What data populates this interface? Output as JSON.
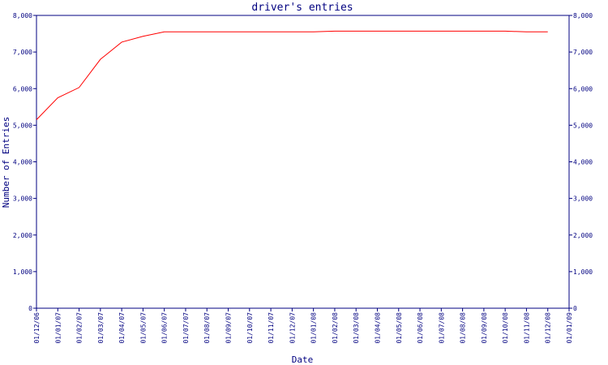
{
  "chart_data": {
    "type": "line",
    "title": "driver's entries",
    "x_label": "Date",
    "y_label": "Number of Entries",
    "categories": [
      "01/12/06",
      "01/01/07",
      "01/02/07",
      "01/03/07",
      "01/04/07",
      "01/05/07",
      "01/06/07",
      "01/07/07",
      "01/08/07",
      "01/09/07",
      "01/10/07",
      "01/11/07",
      "01/12/07",
      "01/01/08",
      "01/02/08",
      "01/03/08",
      "01/04/08",
      "01/05/08",
      "01/06/08",
      "01/07/08",
      "01/08/08",
      "01/09/08",
      "01/10/08",
      "01/11/08",
      "01/12/08",
      "01/01/09"
    ],
    "series": [
      {
        "name": "entries",
        "color": "#ff0000",
        "values": [
          5150,
          5750,
          6030,
          6800,
          7270,
          7430,
          7550,
          7550,
          7550,
          7550,
          7550,
          7550,
          7550,
          7550,
          7570,
          7570,
          7570,
          7570,
          7570,
          7570,
          7570,
          7570,
          7570,
          7550,
          7550,
          null
        ]
      }
    ],
    "ylim": [
      0,
      8000
    ],
    "yticks": [
      0,
      {
        "value": 1000,
        "label": "1,000"
      },
      {
        "value": 2000,
        "label": "2,000"
      },
      {
        "value": 3000,
        "label": "3,000"
      },
      {
        "value": 4000,
        "label": "4,000"
      },
      {
        "value": 5000,
        "label": "5,000"
      },
      {
        "value": 6000,
        "label": "6,000"
      },
      {
        "value": 7000,
        "label": "7,000"
      },
      {
        "value": 8000,
        "label": "8,000"
      }
    ],
    "axis_color": "#000080"
  }
}
